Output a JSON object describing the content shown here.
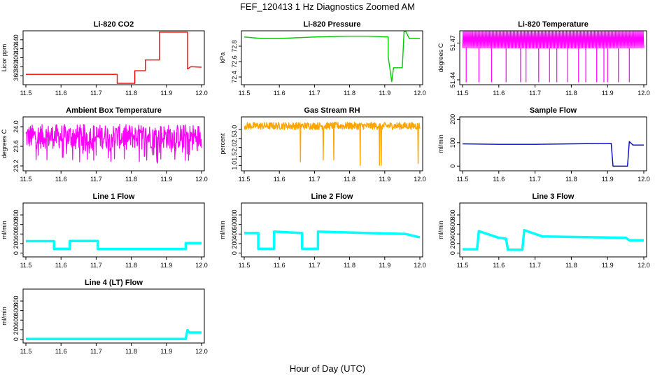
{
  "figure": {
    "title": "FEF_120413  1 Hz Diagnostics Zoomed AM",
    "xlabel": "Hour of Day (UTC)"
  },
  "chart_data": [
    {
      "type": "line",
      "title": "Li-820 CO2",
      "ylabel": "Licor ppm",
      "color": "#ff0000",
      "xlim": [
        11.5,
        12.0
      ],
      "ylim": [
        340,
        460
      ],
      "xticks": [
        "11.5",
        "11.6",
        "11.7",
        "11.8",
        "11.9",
        "12.0"
      ],
      "yticks": [
        "360",
        "380",
        "400",
        "420",
        "440"
      ],
      "series": [
        {
          "x": [
            11.5,
            11.76,
            11.76,
            11.81,
            11.81,
            11.84,
            11.84,
            11.88,
            11.88,
            11.96,
            11.96,
            11.97,
            12.0
          ],
          "y": [
            363,
            363,
            343,
            343,
            371,
            371,
            395,
            395,
            457,
            457,
            375,
            380,
            379
          ]
        }
      ]
    },
    {
      "type": "line",
      "title": "Li-820 Pressure",
      "ylabel": "kPa",
      "color": "#00cc00",
      "xlim": [
        11.5,
        12.0
      ],
      "ylim": [
        72.3,
        73.0
      ],
      "xticks": [
        "11.5",
        "11.6",
        "11.7",
        "11.8",
        "11.9",
        "12.0"
      ],
      "yticks": [
        "72.4",
        "72.6",
        "72.8"
      ],
      "series": [
        {
          "x": [
            11.5,
            11.55,
            11.6,
            11.7,
            11.8,
            11.85,
            11.91,
            11.91,
            11.92,
            11.925,
            11.94,
            11.95,
            11.955,
            11.96,
            11.97,
            12.0
          ],
          "y": [
            72.92,
            72.9,
            72.9,
            72.92,
            72.93,
            72.93,
            72.92,
            72.66,
            72.34,
            72.52,
            72.52,
            72.52,
            72.99,
            72.99,
            72.9,
            72.9
          ]
        }
      ]
    },
    {
      "type": "line",
      "title": "Li-820 Temperature",
      "ylabel": "degrees C",
      "color": "#ff00ff",
      "xlim": [
        11.5,
        12.0
      ],
      "ylim": [
        51.436,
        51.48
      ],
      "xticks": [
        "11.5",
        "11.6",
        "11.7",
        "11.8",
        "11.9",
        "12.0"
      ],
      "yticks": [
        "51.44",
        "51.47"
      ],
      "series": [
        {
          "x": [
            11.5,
            12.0
          ],
          "y": [
            51.466,
            51.466
          ]
        }
      ]
    },
    {
      "type": "line",
      "title": "Ambient Box Temperature",
      "ylabel": "degrees C",
      "color": "#ff00ff",
      "xlim": [
        11.5,
        12.0
      ],
      "ylim": [
        23.1,
        24.2
      ],
      "xticks": [
        "11.5",
        "11.6",
        "11.7",
        "11.8",
        "11.9",
        "12.0"
      ],
      "yticks": [
        "23.2",
        "23.6",
        "24.0"
      ],
      "series": [
        {
          "x": [
            11.5,
            12.0
          ],
          "y": [
            23.8,
            23.8
          ]
        }
      ]
    },
    {
      "type": "line",
      "title": "Gas Stream RH",
      "ylabel": "percent",
      "color": "#ffa500",
      "xlim": [
        11.5,
        12.0
      ],
      "ylim": [
        0.7,
        3.7
      ],
      "xticks": [
        "11.5",
        "11.6",
        "11.7",
        "11.8",
        "11.9",
        "12.0"
      ],
      "yticks": [
        "1.0",
        "1.5",
        "2.0",
        "2.5",
        "3.0"
      ],
      "series": [
        {
          "x": [
            11.5,
            12.0
          ],
          "y": [
            3.2,
            3.2
          ]
        }
      ]
    },
    {
      "type": "line",
      "title": "Sample Flow",
      "ylabel": "ml/min",
      "color": "#0000cc",
      "xlim": [
        11.5,
        12.0
      ],
      "ylim": [
        -20,
        210
      ],
      "xticks": [
        "11.5",
        "11.6",
        "11.7",
        "11.8",
        "11.9",
        "12.0"
      ],
      "yticks": [
        "0",
        "100",
        "200"
      ],
      "series": [
        {
          "x": [
            11.5,
            11.6,
            11.7,
            11.8,
            11.91,
            11.915,
            11.955,
            11.96,
            11.97,
            12.0
          ],
          "y": [
            95,
            93,
            93,
            95,
            97,
            0,
            0,
            105,
            90,
            90
          ]
        }
      ]
    },
    {
      "type": "line",
      "title": "Line 1 Flow",
      "ylabel": "ml/min",
      "color": "#00ffff",
      "xlim": [
        11.5,
        12.0
      ],
      "ylim": [
        -80,
        1050
      ],
      "xticks": [
        "11.5",
        "11.6",
        "11.7",
        "11.8",
        "11.9",
        "12.0"
      ],
      "yticks": [
        "0",
        "200",
        "400",
        "600",
        "800"
      ],
      "series": [
        {
          "x": [
            11.5,
            11.58,
            11.58,
            11.625,
            11.625,
            11.705,
            11.705,
            11.955,
            11.955,
            12.0
          ],
          "y": [
            250,
            250,
            90,
            90,
            255,
            255,
            85,
            85,
            210,
            210
          ]
        }
      ]
    },
    {
      "type": "line",
      "title": "Line 2 Flow",
      "ylabel": "ml/min",
      "color": "#00ffff",
      "xlim": [
        11.5,
        12.0
      ],
      "ylim": [
        -80,
        1050
      ],
      "xticks": [
        "11.5",
        "11.6",
        "11.7",
        "11.8",
        "11.9",
        "12.0"
      ],
      "yticks": [
        "0",
        "200",
        "400",
        "600",
        "800"
      ],
      "series": [
        {
          "x": [
            11.5,
            11.54,
            11.54,
            11.585,
            11.585,
            11.665,
            11.665,
            11.71,
            11.71,
            11.96,
            11.96,
            12.0
          ],
          "y": [
            420,
            420,
            90,
            90,
            450,
            420,
            90,
            90,
            450,
            400,
            400,
            330
          ]
        }
      ]
    },
    {
      "type": "line",
      "title": "Line 3 Flow",
      "ylabel": "ml/min",
      "color": "#00ffff",
      "xlim": [
        11.5,
        12.0
      ],
      "ylim": [
        -80,
        1050
      ],
      "xticks": [
        "11.5",
        "11.6",
        "11.7",
        "11.8",
        "11.9",
        "12.0"
      ],
      "yticks": [
        "0",
        "200",
        "400",
        "600",
        "800"
      ],
      "series": [
        {
          "x": [
            11.5,
            11.54,
            11.545,
            11.6,
            11.62,
            11.625,
            11.665,
            11.67,
            11.72,
            11.95,
            11.96,
            12.0
          ],
          "y": [
            80,
            80,
            460,
            320,
            300,
            70,
            70,
            480,
            350,
            320,
            270,
            270
          ]
        }
      ]
    },
    {
      "type": "line",
      "title": "Line 4 (LT) Flow",
      "ylabel": "ml/min",
      "color": "#00ffff",
      "xlim": [
        11.5,
        12.0
      ],
      "ylim": [
        -80,
        1050
      ],
      "xticks": [
        "11.5",
        "11.6",
        "11.7",
        "11.8",
        "11.9",
        "12.0"
      ],
      "yticks": [
        "0",
        "200",
        "400",
        "600",
        "800"
      ],
      "series": [
        {
          "x": [
            11.5,
            11.955,
            11.96,
            11.965,
            12.0
          ],
          "y": [
            5,
            5,
            190,
            140,
            140
          ]
        }
      ]
    }
  ]
}
